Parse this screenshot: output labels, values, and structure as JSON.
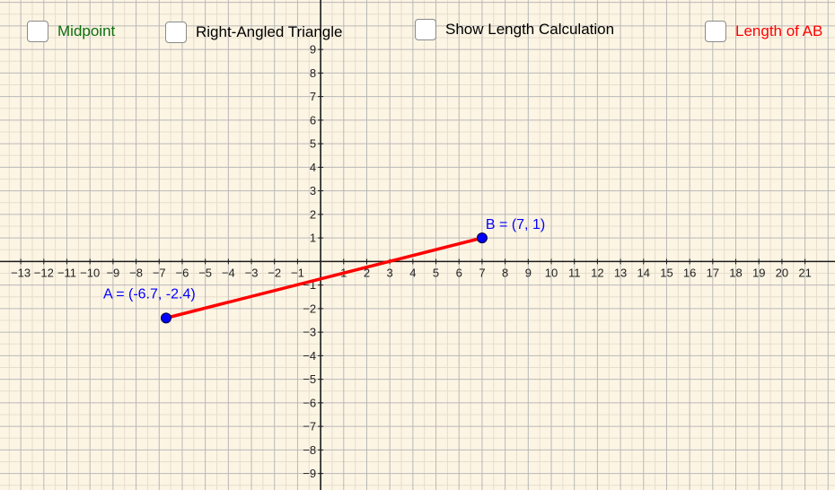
{
  "checkboxes": [
    {
      "id": "midpoint",
      "label": "Midpoint",
      "color": "#0b6e0b",
      "checked": false
    },
    {
      "id": "right-angled-triangle",
      "label": "Right-Angled Triangle",
      "color": "#000000",
      "checked": false
    },
    {
      "id": "show-length-calculation",
      "label": "Show Length Calculation",
      "color": "#000000",
      "checked": false
    },
    {
      "id": "length-of-ab",
      "label": "Length of AB",
      "color": "#ff0000",
      "checked": false
    }
  ],
  "axes": {
    "x_ticks": [
      -13,
      -12,
      -11,
      -10,
      -9,
      -8,
      -7,
      -6,
      -5,
      -4,
      -3,
      -2,
      -1,
      1,
      2,
      3,
      4,
      5,
      6,
      7,
      8,
      9,
      10,
      11,
      12,
      13,
      14,
      15,
      16,
      17,
      18,
      19,
      20,
      21
    ],
    "y_ticks": [
      9,
      8,
      7,
      6,
      5,
      4,
      3,
      2,
      1,
      -1,
      -2,
      -3,
      -4,
      -5,
      -6,
      -7,
      -8,
      -9
    ],
    "x_range": [
      -13.9,
      22.3
    ],
    "y_range": [
      -9.7,
      11.1
    ]
  },
  "points": {
    "A": {
      "x": -6.7,
      "y": -2.4,
      "label": "A = (-6.7, -2.4)",
      "color": "#0000ff"
    },
    "B": {
      "x": 7,
      "y": 1,
      "label": "B = (7, 1)",
      "color": "#0000ff"
    }
  },
  "segment": {
    "from": "A",
    "to": "B",
    "color": "#ff0000"
  },
  "colors": {
    "background": "#fdf5e4",
    "grid_major": "#b8b8b8",
    "grid_minor": "#e6ddcc",
    "axis": "#1a1a1a"
  }
}
